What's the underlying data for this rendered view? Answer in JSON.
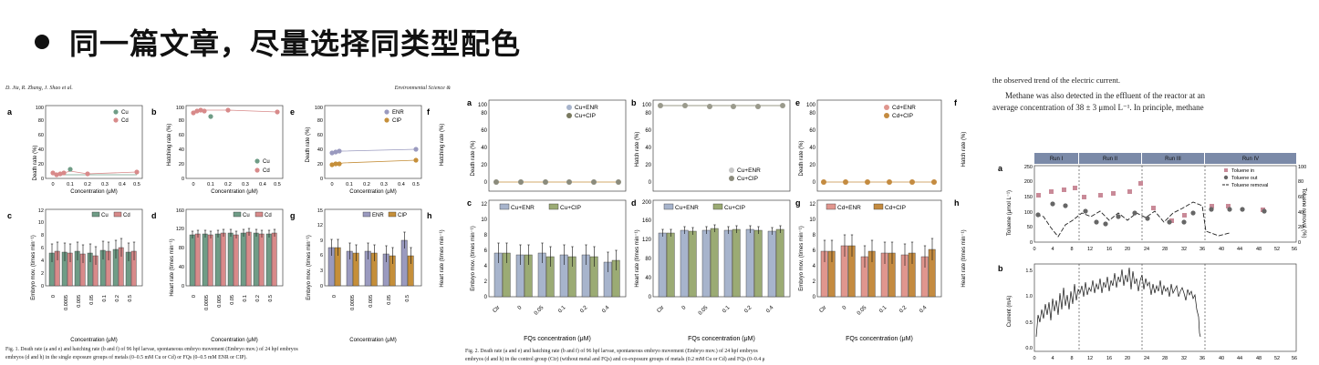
{
  "slide": {
    "title": "同一篇文章，尽量选择同类型配色"
  },
  "figure1": {
    "header_left": "D. Jia, R. Zhang, J. Shao et al.",
    "header_right": "Environmental Science &",
    "panels": {
      "a": {
        "letter": "a",
        "ylabel": "Death rate (%)",
        "xlabel": "Concentration (μM)",
        "yticks": [
          "0",
          "20",
          "40",
          "60",
          "80",
          "100"
        ],
        "xticks": [
          "0",
          "0.1",
          "0.2",
          "0.3",
          "0.4",
          "0.5"
        ],
        "legend": [
          "Cu",
          "Cd"
        ]
      },
      "b": {
        "letter": "b",
        "ylabel": "Hatching rate (%)",
        "xlabel": "Concentration (μM)",
        "yticks": [
          "0",
          "20",
          "40",
          "60",
          "80",
          "100"
        ],
        "xticks": [
          "0",
          "0.1",
          "0.2",
          "0.3",
          "0.4",
          "0.5"
        ],
        "legend": [
          "Cu",
          "Cd"
        ]
      },
      "e": {
        "letter": "e",
        "ylabel": "Death rate (%)",
        "xlabel": "Concentration (μM)",
        "yticks": [
          "0",
          "20",
          "40",
          "60",
          "80",
          "100"
        ],
        "xticks": [
          "0",
          "0.1",
          "0.2",
          "0.3",
          "0.4",
          "0.5"
        ],
        "legend": [
          "ENR",
          "CIP"
        ]
      },
      "f": {
        "letter": "f",
        "ylabel": "Hatching rate (%)"
      },
      "c": {
        "letter": "c",
        "ylabel": "Embryo mov. (times min⁻¹)",
        "xlabel": "Concentration (μM)",
        "yticks": [
          "0",
          "2",
          "4",
          "6",
          "8",
          "10",
          "12"
        ],
        "xticks": [
          "0",
          "0.0005",
          "0.005",
          "0.05",
          "0.1",
          "0.2",
          "0.5"
        ],
        "legend": [
          "Cu",
          "Cd"
        ]
      },
      "d": {
        "letter": "d",
        "ylabel": "Heart rate (times min⁻¹)",
        "xlabel": "Concentration (μM)",
        "yticks": [
          "0",
          "40",
          "80",
          "120",
          "160"
        ],
        "xticks": [
          "0",
          "0.0005",
          "0.005",
          "0.05",
          "0.1",
          "0.2",
          "0.5"
        ],
        "legend": [
          "Cu",
          "Cd"
        ]
      },
      "g": {
        "letter": "g",
        "ylabel": "Embryo mov. (times min⁻¹)",
        "xlabel": "Concentration (μM)",
        "yticks": [
          "0",
          "3",
          "6",
          "9",
          "12",
          "15"
        ],
        "xticks": [
          "0",
          "0.0005",
          "0.005",
          "0.05",
          "0.5"
        ],
        "legend": [
          "ENR",
          "CIP"
        ]
      },
      "h": {
        "letter": "h",
        "ylabel": "Heart rate (times min⁻¹)"
      }
    },
    "caption_line1": "Fig. 1. Death rate (a and e) and hatching rate (b and f) of 96 hpf larvae, spontaneous embryo movement (Embryo mov.) of 24 hpf embryos",
    "caption_line2": "embryos (d and h) in the single exposure groups of metals (0–0.5 mM Cu or Cd) or FQs (0–0.5 mM ENR or CIP)."
  },
  "figure2": {
    "panels": {
      "a": {
        "letter": "a",
        "ylabel": "Death rate (%)",
        "yticks": [
          "0",
          "20",
          "40",
          "60",
          "80",
          "100"
        ],
        "legend": [
          "Cu+ENR",
          "Cu+CIP"
        ]
      },
      "b": {
        "letter": "b",
        "ylabel": "Hatch rate (%)",
        "yticks": [
          "0",
          "20",
          "40",
          "60",
          "80",
          "100"
        ],
        "legend": [
          "Cu+ENR",
          "Cu+CIP"
        ]
      },
      "e": {
        "letter": "e",
        "ylabel": "Death rate (%)",
        "yticks": [
          "0",
          "20",
          "40",
          "60",
          "80",
          "100"
        ],
        "legend": [
          "Cd+ENR",
          "Cd+CIP"
        ]
      },
      "f": {
        "letter": "f",
        "ylabel": "Hatch rate (%)"
      },
      "c": {
        "letter": "c",
        "ylabel": "Embryo mov. (times min⁻¹)",
        "yticks": [
          "0",
          "2",
          "4",
          "6",
          "8",
          "10",
          "12"
        ],
        "legend": [
          "Cu+ENR",
          "Cu+CIP"
        ]
      },
      "d": {
        "letter": "d",
        "ylabel": "Heart rate (times min⁻¹)",
        "yticks": [
          "0",
          "40",
          "80",
          "120",
          "160",
          "200"
        ],
        "legend": [
          "Cu+ENR",
          "Cu+CIP"
        ]
      },
      "g": {
        "letter": "g",
        "ylabel": "Embryo mov. (times min⁻¹)",
        "yticks": [
          "0",
          "2",
          "4",
          "6",
          "8",
          "10",
          "12"
        ],
        "legend": [
          "Cd+ENR",
          "Cd+CIP"
        ]
      },
      "h": {
        "letter": "h",
        "ylabel": "Heart rate (times min⁻¹)"
      }
    },
    "xticks": [
      "Ctr",
      "0",
      "0.05",
      "0.1",
      "0.2",
      "0.4"
    ],
    "xlabel": "FQs concentration (μM)",
    "caption_line1": "Fig. 2. Death rate (a and e) and hatching rate (b and f) of 96 hpf larvae, spontaneous embryo movement (Embryo mov.) of 24 hpf embryos",
    "caption_line2": "embryos (d and h) in the control group (Ctr) (without metal and FQs) and co-exposure groups of metals (0.2 mM Cu or Cd) and FQs (0–0.4 μ"
  },
  "figure3": {
    "text_line0": "the observed trend of the electric current.",
    "text_line1": "Methane was also detected in the effluent of the reactor at an",
    "text_line2": "average concentration of 38 ± 3 μmol L⁻¹. In principle, methane",
    "runs": [
      "Run I",
      "Run II",
      "Run III",
      "Run IV"
    ],
    "panel_a": {
      "letter": "a",
      "ylabel": "Toluene (μmol L⁻¹)",
      "y2label": "Toluene removal (%)",
      "yticks": [
        "0",
        "50",
        "100",
        "150",
        "200",
        "250"
      ],
      "y2ticks": [
        "0",
        "20",
        "40",
        "60",
        "80",
        "100"
      ],
      "legend": [
        "Toluene in",
        "Toluene out",
        "Toluene removal"
      ]
    },
    "panel_b": {
      "letter": "b",
      "ylabel": "Current (mA)",
      "yticks": [
        "0.0",
        "0.5",
        "1.0",
        "1.5"
      ]
    },
    "xticks": [
      "0",
      "4",
      "8",
      "12",
      "16",
      "20",
      "24",
      "28",
      "32",
      "36",
      "40",
      "44",
      "48",
      "52",
      "56"
    ]
  },
  "colors": {
    "cu": "#6f9c86",
    "cd": "#d88a8a",
    "enr": "#9a9abf",
    "cip": "#c58f3a",
    "cu_enr": "#a7b4cc",
    "cu_cip": "#9bab74",
    "cd_enr": "#e0968e",
    "cd_cip": "#c48b40"
  }
}
